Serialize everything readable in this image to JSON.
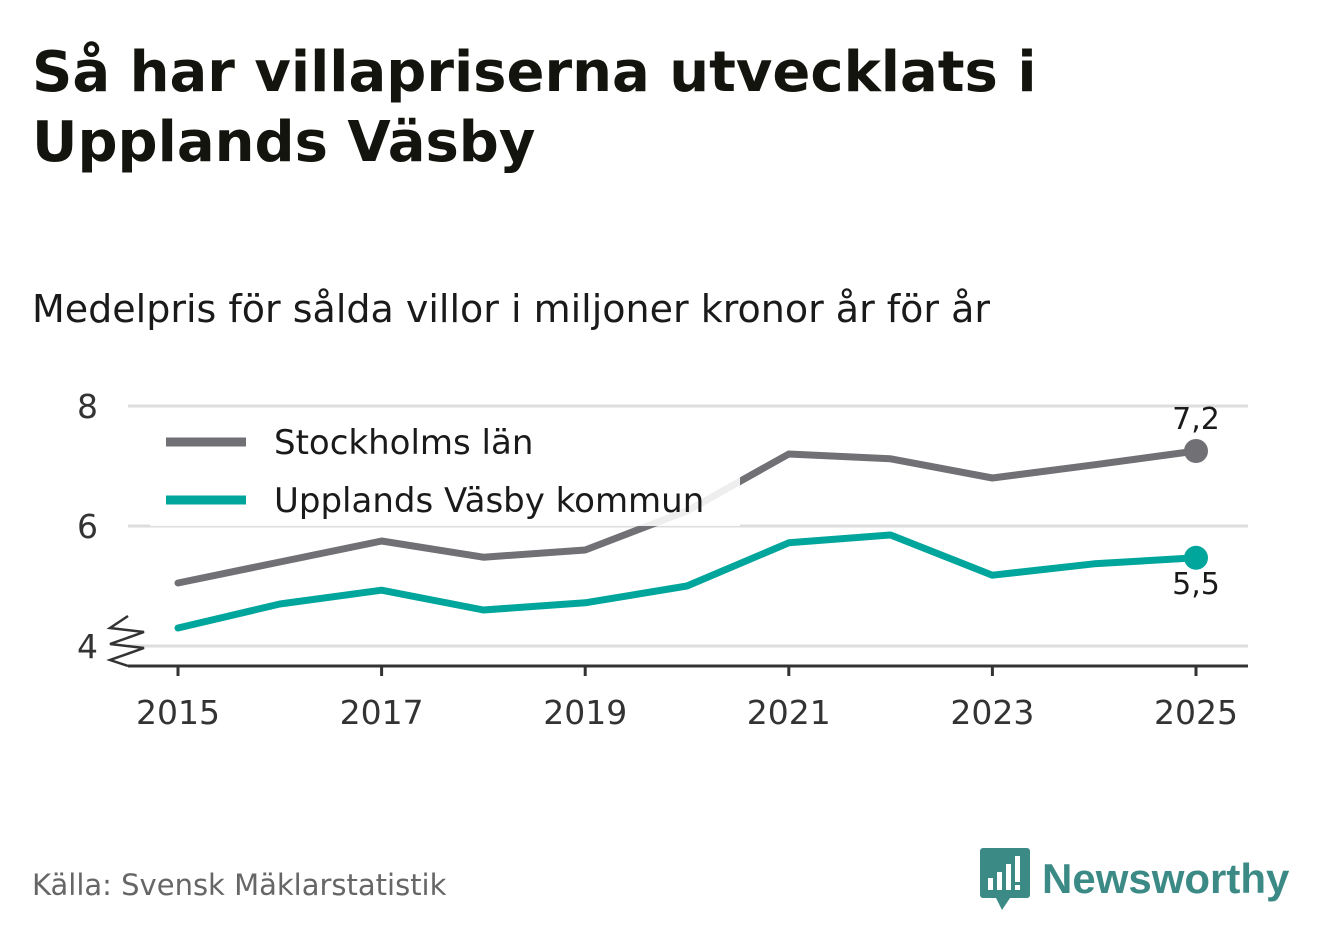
{
  "title": "Så har villapriserna utvecklats i Upplands Väsby",
  "subtitle": "Medelpris för sålda villor i miljoner kronor år för år",
  "source": "Källa: Svensk Mäklarstatistik",
  "brand": "Newsworthy",
  "colors": {
    "stockholm": "#717075",
    "vasby": "#00a69c",
    "grid": "#dddddd",
    "axis": "#333333"
  },
  "chart_data": {
    "type": "line",
    "title": "Så har villapriserna utvecklats i Upplands Väsby",
    "subtitle": "Medelpris för sålda villor i miljoner kronor år för år",
    "xlabel": "",
    "ylabel": "",
    "x": [
      2015,
      2016,
      2017,
      2018,
      2019,
      2020,
      2021,
      2022,
      2023,
      2024,
      2025
    ],
    "xticks": [
      "2015",
      "2017",
      "2019",
      "2021",
      "2023",
      "2025"
    ],
    "yticks": [
      "4",
      "6",
      "8"
    ],
    "ylim": [
      4,
      8
    ],
    "y_axis_break": true,
    "grid": true,
    "legend_position": "top-left",
    "series": [
      {
        "name": "Stockholms län",
        "color": "#717075",
        "values": [
          5.05,
          5.4,
          5.75,
          5.48,
          5.6,
          6.25,
          7.2,
          7.12,
          6.8,
          7.02,
          7.25
        ],
        "end_label": "7,2"
      },
      {
        "name": "Upplands Väsby kommun",
        "color": "#00a69c",
        "values": [
          4.3,
          4.7,
          4.93,
          4.6,
          4.72,
          5.0,
          5.72,
          5.85,
          5.18,
          5.37,
          5.47
        ],
        "end_label": "5,5"
      }
    ]
  }
}
